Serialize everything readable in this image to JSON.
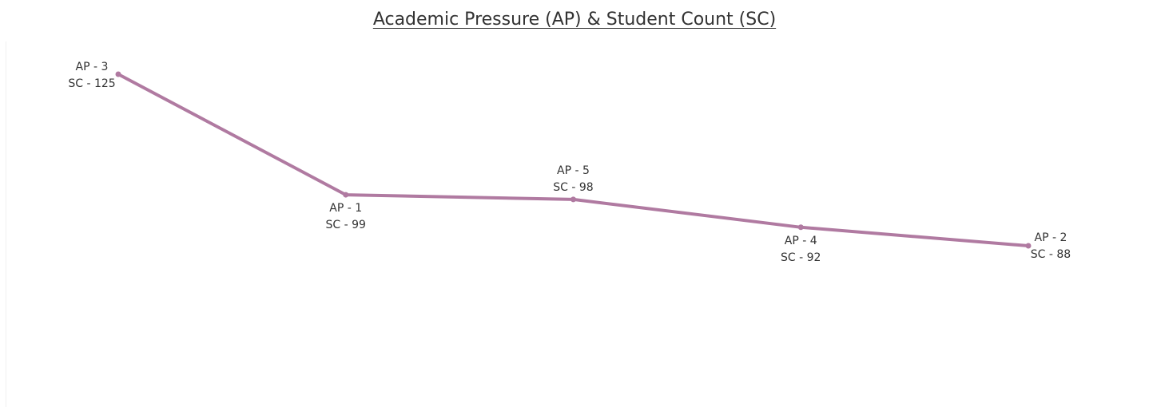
{
  "chart_data": {
    "type": "line",
    "title": "Academic Pressure (AP) & Student Count (SC)",
    "xlabel": "",
    "ylabel": "",
    "grid": false,
    "ylim": [
      70,
      130
    ],
    "line_color": "#b07aa1",
    "points": [
      {
        "ap": "3",
        "sc": 125,
        "label_ap": "AP - 3",
        "label_sc": "SC - 125",
        "label_position": "above-left"
      },
      {
        "ap": "1",
        "sc": 99,
        "label_ap": "AP - 1",
        "label_sc": "SC - 99",
        "label_position": "below"
      },
      {
        "ap": "5",
        "sc": 98,
        "label_ap": "AP - 5",
        "label_sc": "SC - 98",
        "label_position": "above"
      },
      {
        "ap": "4",
        "sc": 92,
        "label_ap": "AP - 4",
        "label_sc": "SC - 92",
        "label_position": "below"
      },
      {
        "ap": "2",
        "sc": 88,
        "label_ap": "AP - 2",
        "label_sc": "SC - 88",
        "label_position": "above-right"
      }
    ]
  }
}
